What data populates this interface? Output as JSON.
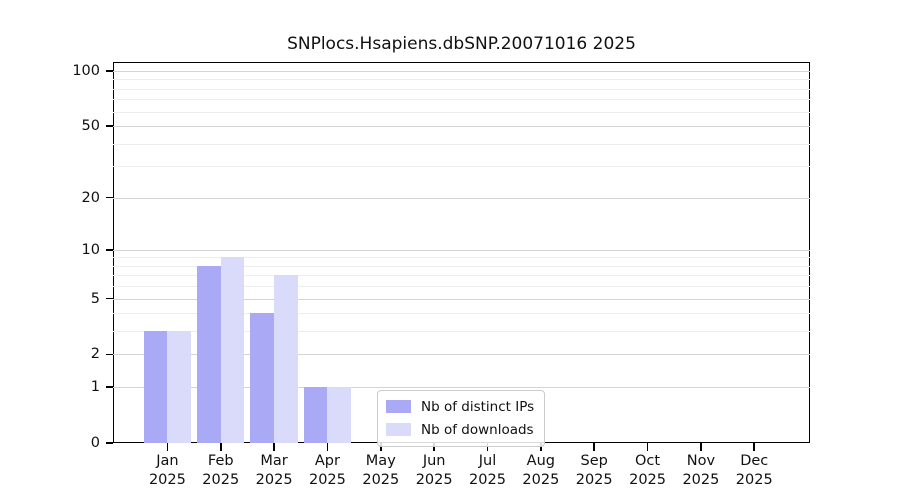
{
  "chart_data": {
    "type": "bar",
    "title": "SNPlocs.Hsapiens.dbSNP.20071016 2025",
    "categories": [
      "Jan",
      "Feb",
      "Mar",
      "Apr",
      "May",
      "Jun",
      "Jul",
      "Aug",
      "Sep",
      "Oct",
      "Nov",
      "Dec"
    ],
    "x_tick_year": "2025",
    "series": [
      {
        "name": "Nb of distinct IPs",
        "color": "#a9a9f5",
        "values": [
          3,
          8,
          4,
          1,
          0,
          0,
          0,
          0,
          0,
          0,
          0,
          0
        ]
      },
      {
        "name": "Nb of downloads",
        "color": "#dadafa",
        "values": [
          3,
          9,
          7,
          1,
          0,
          0,
          0,
          0,
          0,
          0,
          0,
          0
        ]
      }
    ],
    "yscale": "log1p",
    "ylim": [
      0,
      113
    ],
    "yticks": [
      0,
      1,
      2,
      5,
      10,
      20,
      50,
      100
    ],
    "minor_gridlines": [
      3,
      4,
      6,
      7,
      8,
      9,
      30,
      40,
      60,
      70,
      80,
      90
    ],
    "grid": "horizontal",
    "xlabel": "",
    "ylabel": "",
    "legend_position": "inside-bottom-center",
    "colors": {
      "major_grid": "#d4d4d4",
      "minor_grid": "#ededed",
      "axis": "#000000",
      "text": "#111111",
      "background": "#ffffff"
    }
  }
}
